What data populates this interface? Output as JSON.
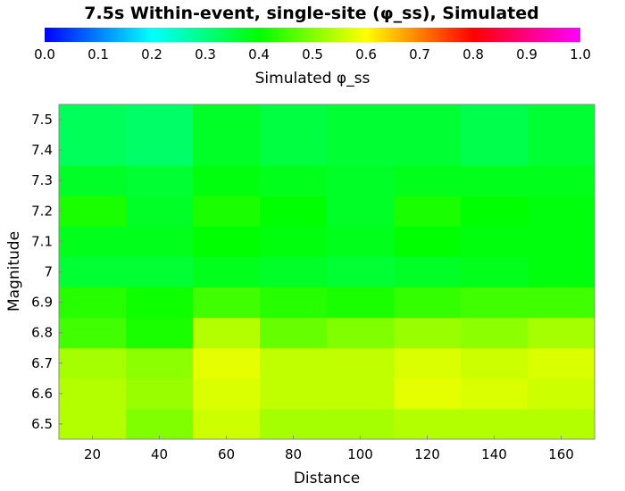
{
  "chart_data": {
    "type": "heatmap",
    "title": "7.5s Within-event, single-site (φ_ss), Simulated",
    "xlabel": "Distance",
    "ylabel": "Magnitude",
    "colorbar": {
      "label": "Simulated φ_ss",
      "range": [
        0.0,
        1.0
      ],
      "ticks": [
        "0.0",
        "0.1",
        "0.2",
        "0.3",
        "0.4",
        "0.5",
        "0.6",
        "0.7",
        "0.8",
        "0.9",
        "1.0"
      ],
      "stops": [
        "#0000ff",
        "#00ffff",
        "#00ff00",
        "#ffff00",
        "#ff0000",
        "#ff00ff"
      ]
    },
    "x": [
      20,
      40,
      60,
      80,
      100,
      120,
      140,
      160
    ],
    "x_ticks": [
      "20",
      "40",
      "60",
      "80",
      "100",
      "120",
      "140",
      "160"
    ],
    "x_range": [
      10,
      170
    ],
    "y": [
      6.5,
      6.6,
      6.7,
      6.8,
      6.9,
      7.0,
      7.1,
      7.2,
      7.3,
      7.4,
      7.5
    ],
    "y_ticks": [
      "6.5",
      "6.6",
      "6.7",
      "6.8",
      "6.9",
      "7",
      "7.1",
      "7.2",
      "7.3",
      "7.4",
      "7.5"
    ],
    "values": [
      [
        0.54,
        0.5,
        0.56,
        0.53,
        0.53,
        0.54,
        0.54,
        0.54
      ],
      [
        0.54,
        0.52,
        0.57,
        0.55,
        0.55,
        0.58,
        0.57,
        0.56
      ],
      [
        0.53,
        0.51,
        0.58,
        0.55,
        0.55,
        0.57,
        0.56,
        0.57
      ],
      [
        0.45,
        0.42,
        0.54,
        0.48,
        0.5,
        0.52,
        0.51,
        0.53
      ],
      [
        0.43,
        0.41,
        0.45,
        0.43,
        0.42,
        0.44,
        0.45,
        0.45
      ],
      [
        0.36,
        0.36,
        0.38,
        0.37,
        0.36,
        0.37,
        0.38,
        0.39
      ],
      [
        0.38,
        0.38,
        0.4,
        0.39,
        0.38,
        0.4,
        0.39,
        0.39
      ],
      [
        0.42,
        0.37,
        0.42,
        0.4,
        0.37,
        0.42,
        0.4,
        0.39
      ],
      [
        0.37,
        0.36,
        0.39,
        0.38,
        0.37,
        0.38,
        0.38,
        0.38
      ],
      [
        0.33,
        0.32,
        0.37,
        0.35,
        0.36,
        0.36,
        0.34,
        0.36
      ],
      [
        0.33,
        0.32,
        0.37,
        0.35,
        0.36,
        0.36,
        0.34,
        0.36
      ]
    ]
  }
}
